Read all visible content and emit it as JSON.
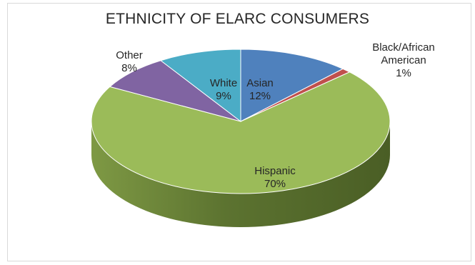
{
  "chart_data": {
    "type": "pie",
    "title": "ETHNICITY OF ELARC CONSUMERS",
    "slices": [
      {
        "label": "Asian",
        "value": 12,
        "percent_label": "12%",
        "color": "#4f81bd"
      },
      {
        "label": "Black/African American",
        "value": 1,
        "percent_label": "1%",
        "color": "#c0504d"
      },
      {
        "label": "Hispanic",
        "value": 70,
        "percent_label": "70%",
        "color": "#9bbb59"
      },
      {
        "label": "Other",
        "value": 8,
        "percent_label": "8%",
        "color": "#8064a2"
      },
      {
        "label": "White",
        "value": 9,
        "percent_label": "9%",
        "color": "#4bacc6"
      }
    ]
  }
}
